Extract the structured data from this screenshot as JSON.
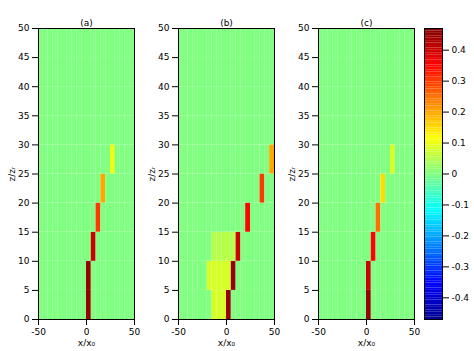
{
  "chart_data": [
    {
      "type": "heatmap",
      "title": "(a)",
      "x_label": "x/x₀",
      "y_label": "z/zᵣ",
      "xlim": [
        -50,
        50
      ],
      "ylim": [
        0,
        50
      ],
      "xticks": [
        -50,
        0,
        50
      ],
      "yticks": [
        0,
        5,
        10,
        15,
        20,
        25,
        30,
        35,
        40,
        45,
        50
      ],
      "x_bins": [
        -50,
        -45,
        -40,
        -35,
        -30,
        -25,
        -20,
        -15,
        -10,
        -5,
        0,
        5,
        10,
        15,
        20,
        25,
        30,
        35,
        40,
        45,
        50
      ],
      "y_bins": [
        0,
        5,
        10,
        15,
        20,
        25,
        30,
        35,
        40,
        45,
        50
      ],
      "color_range": [
        -0.47,
        0.47
      ],
      "values": [
        [
          0,
          0,
          0,
          0,
          0,
          0,
          0,
          0,
          0,
          0,
          0.45,
          0,
          0,
          0,
          0,
          0,
          0,
          0,
          0,
          0
        ],
        [
          0,
          0,
          0,
          0,
          0,
          0,
          0,
          0,
          0,
          0,
          0.45,
          0,
          0,
          0,
          0,
          0,
          0,
          0,
          0,
          0
        ],
        [
          0,
          0,
          0,
          0,
          0,
          0,
          0,
          0,
          0,
          0,
          0,
          0.4,
          0,
          0,
          0,
          0,
          0,
          0,
          0,
          0
        ],
        [
          0,
          0,
          0,
          0,
          0,
          0,
          0,
          0,
          0,
          0,
          0,
          0,
          0.3,
          0,
          0,
          0,
          0,
          0,
          0,
          0
        ],
        [
          0,
          0,
          0,
          0,
          0,
          0,
          0,
          0,
          0,
          0,
          0,
          0,
          0,
          0.2,
          0,
          0,
          0,
          0,
          0,
          0
        ],
        [
          0,
          0,
          0,
          0,
          0,
          0,
          0,
          0,
          0,
          0,
          0,
          0,
          0,
          0,
          0,
          0.1,
          0,
          0,
          0,
          0
        ],
        [
          0,
          0,
          0,
          0,
          0,
          0,
          0,
          0,
          0,
          0,
          0,
          0,
          0,
          0,
          0,
          0,
          0,
          0,
          0,
          0
        ],
        [
          0,
          0,
          0,
          0,
          0,
          0,
          0,
          0,
          0,
          0,
          0,
          0,
          0,
          0,
          0,
          0,
          0,
          0,
          0,
          0
        ],
        [
          0,
          0,
          0,
          0,
          0,
          0,
          0,
          0,
          0,
          0,
          0,
          0,
          0,
          0,
          0,
          0,
          0,
          0,
          0,
          0
        ],
        [
          0,
          0,
          0,
          0,
          0,
          0,
          0,
          0,
          0,
          0,
          0,
          0,
          0,
          0,
          0,
          0,
          0,
          0,
          0,
          0
        ]
      ]
    },
    {
      "type": "heatmap",
      "title": "(b)",
      "x_label": "x/x₀",
      "y_label": "z/zᵣ",
      "xlim": [
        -50,
        50
      ],
      "ylim": [
        0,
        50
      ],
      "xticks": [
        -50,
        0,
        50
      ],
      "yticks": [
        0,
        5,
        10,
        15,
        20,
        25,
        30,
        35,
        40,
        45,
        50
      ],
      "x_bins": [
        -50,
        -45,
        -40,
        -35,
        -30,
        -25,
        -20,
        -15,
        -10,
        -5,
        0,
        5,
        10,
        15,
        20,
        25,
        30,
        35,
        40,
        45,
        50
      ],
      "y_bins": [
        0,
        5,
        10,
        15,
        20,
        25,
        30,
        35,
        40,
        45,
        50
      ],
      "color_range": [
        -0.47,
        0.47
      ],
      "values": [
        [
          0,
          0,
          0,
          0,
          0,
          0,
          0,
          0.08,
          0.08,
          0.08,
          0.45,
          0,
          0,
          0,
          0,
          0,
          0,
          0,
          0,
          0
        ],
        [
          0,
          0,
          0,
          0,
          0,
          0,
          0.08,
          0.08,
          0.08,
          0.08,
          0.08,
          0.45,
          0,
          0,
          0,
          0,
          0,
          0,
          0,
          0
        ],
        [
          0,
          0,
          0,
          0,
          0,
          0,
          0,
          0.05,
          0.05,
          0.05,
          0.05,
          0.05,
          0.4,
          0,
          0,
          0,
          0,
          0,
          0,
          0
        ],
        [
          0,
          0,
          0,
          0,
          0,
          0,
          0,
          0,
          0,
          0,
          0,
          0,
          0,
          0,
          0.35,
          0,
          0,
          0,
          0,
          0
        ],
        [
          0,
          0,
          0,
          0,
          0,
          0,
          0,
          0,
          0,
          0,
          0,
          0,
          0,
          0,
          0,
          0,
          0,
          0.3,
          0,
          0
        ],
        [
          0,
          0,
          0,
          0,
          0,
          0,
          0,
          0,
          0,
          0,
          0,
          0,
          0,
          0,
          0,
          0,
          0,
          0,
          0,
          0.2
        ],
        [
          0,
          0,
          0,
          0,
          0,
          0,
          0,
          0,
          0,
          0,
          0,
          0,
          0,
          0,
          0,
          0,
          0,
          0,
          0,
          0
        ],
        [
          0,
          0,
          0,
          0,
          0,
          0,
          0,
          0,
          0,
          0,
          0,
          0,
          0,
          0,
          0,
          0,
          0,
          0,
          0,
          0
        ],
        [
          0,
          0,
          0,
          0,
          0,
          0,
          0,
          0,
          0,
          0,
          0,
          0,
          0,
          0,
          0,
          0,
          0,
          0,
          0,
          0
        ],
        [
          0,
          0,
          0,
          0,
          0,
          0,
          0,
          0,
          0,
          0,
          0,
          0,
          0,
          0,
          0,
          0,
          0,
          0,
          0,
          0
        ]
      ]
    },
    {
      "type": "heatmap",
      "title": "(c)",
      "x_label": "x/x₀",
      "y_label": "z/zᵣ",
      "xlim": [
        -50,
        50
      ],
      "ylim": [
        0,
        50
      ],
      "xticks": [
        -50,
        0,
        50
      ],
      "yticks": [
        0,
        5,
        10,
        15,
        20,
        25,
        30,
        35,
        40,
        45,
        50
      ],
      "x_bins": [
        -50,
        -45,
        -40,
        -35,
        -30,
        -25,
        -20,
        -15,
        -10,
        -5,
        0,
        5,
        10,
        15,
        20,
        25,
        30,
        35,
        40,
        45,
        50
      ],
      "y_bins": [
        0,
        5,
        10,
        15,
        20,
        25,
        30,
        35,
        40,
        45,
        50
      ],
      "color_range": [
        -0.47,
        0.47
      ],
      "color_ticks": [
        -0.4,
        -0.3,
        -0.2,
        -0.1,
        0,
        0.1,
        0.2,
        0.3,
        0.4
      ],
      "values": [
        [
          0,
          0,
          0,
          0,
          0,
          0,
          0,
          0,
          0,
          0,
          0.45,
          0,
          0,
          0,
          0,
          0,
          0,
          0,
          0,
          0
        ],
        [
          0,
          0,
          0,
          0,
          0,
          0,
          0,
          0,
          0,
          0,
          0.4,
          0,
          0,
          0,
          0,
          0,
          0,
          0,
          0,
          0
        ],
        [
          0,
          0,
          0,
          0,
          0,
          0,
          0,
          0,
          0,
          0,
          0,
          0.35,
          0,
          0,
          0,
          0,
          0,
          0,
          0,
          0
        ],
        [
          0,
          0,
          0,
          0,
          0,
          0,
          0,
          0,
          0,
          0,
          0,
          0,
          0.25,
          0,
          0,
          0,
          0,
          0,
          0,
          0
        ],
        [
          0,
          0,
          0,
          0,
          0,
          0,
          0,
          0,
          0,
          0,
          0,
          0,
          0,
          0.15,
          0,
          0,
          0,
          0,
          0,
          0
        ],
        [
          0,
          0,
          0,
          0,
          0,
          0,
          0,
          0,
          0,
          0,
          0,
          0,
          0,
          0,
          0,
          0.08,
          0,
          0,
          0,
          0
        ],
        [
          0,
          0,
          0,
          0,
          0,
          0,
          0,
          0,
          0,
          0,
          0,
          0,
          0,
          0,
          0,
          0,
          0,
          0,
          0,
          0
        ],
        [
          0,
          0,
          0,
          0,
          0,
          0,
          0,
          0,
          0,
          0,
          0,
          0,
          0,
          0,
          0,
          0,
          0,
          0,
          0,
          0
        ],
        [
          0,
          0,
          0,
          0,
          0,
          0,
          0,
          0,
          0,
          0,
          0,
          0,
          0,
          0,
          0,
          0,
          0,
          0,
          0,
          0
        ],
        [
          0,
          0,
          0,
          0,
          0,
          0,
          0,
          0,
          0,
          0,
          0,
          0,
          0,
          0,
          0,
          0,
          0,
          0,
          0,
          0
        ]
      ]
    }
  ]
}
